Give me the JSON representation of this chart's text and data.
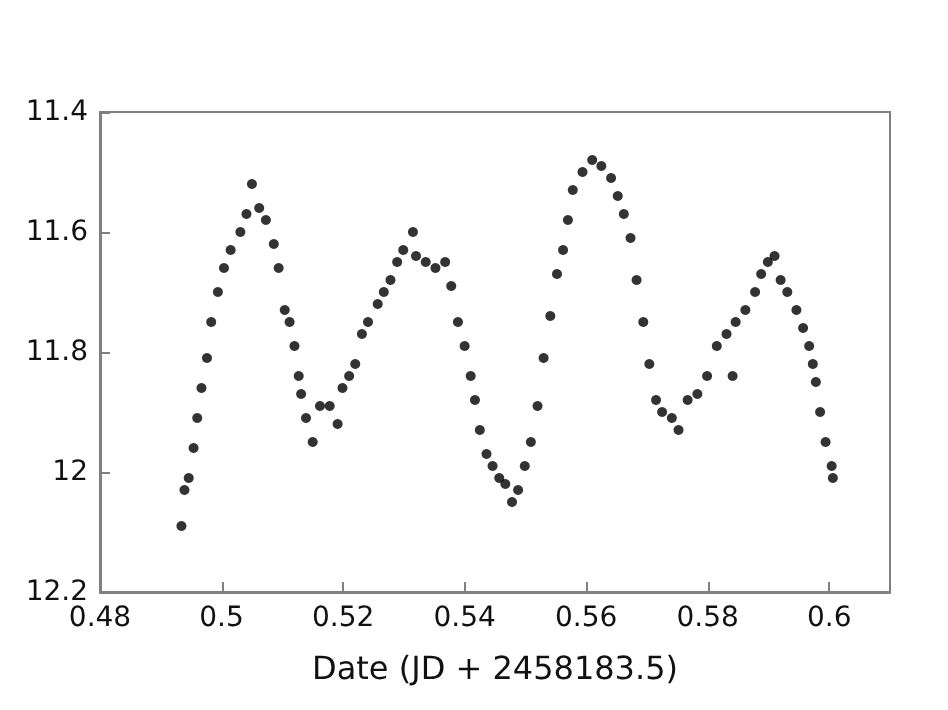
{
  "chart_data": {
    "type": "scatter",
    "xlabel": "Date (JD + 2458183.5)",
    "xlim": [
      0.48,
      0.61
    ],
    "xticks": [
      0.48,
      0.5,
      0.52,
      0.54,
      0.56,
      0.58,
      0.6
    ],
    "ylim": [
      12.2,
      11.4
    ],
    "yticks": [
      11.4,
      11.6,
      11.8,
      12,
      12.2
    ],
    "grid": false,
    "marker": "circle",
    "series": [
      {
        "color": "#000000",
        "x": [
          0.4934,
          0.4939,
          0.4946,
          0.4954,
          0.496,
          0.4967,
          0.4976,
          0.4983,
          0.4994,
          0.5004,
          0.5015,
          0.5031,
          0.5041,
          0.505,
          0.5062,
          0.5073,
          0.5086,
          0.5094,
          0.5104,
          0.5112,
          0.512,
          0.5127,
          0.5131,
          0.5139,
          0.515,
          0.5162,
          0.5178,
          0.5191,
          0.5199,
          0.521,
          0.522,
          0.5231,
          0.5241,
          0.5257,
          0.5267,
          0.5278,
          0.5289,
          0.5299,
          0.5315,
          0.532,
          0.5336,
          0.5352,
          0.5368,
          0.5378,
          0.5389,
          0.54,
          0.541,
          0.5417,
          0.5425,
          0.5436,
          0.5446,
          0.5457,
          0.5467,
          0.5478,
          0.5488,
          0.5499,
          0.5509,
          0.552,
          0.553,
          0.5541,
          0.5552,
          0.5562,
          0.557,
          0.5578,
          0.5594,
          0.561,
          0.5625,
          0.5641,
          0.5652,
          0.5662,
          0.5673,
          0.5683,
          0.5694,
          0.5704,
          0.5715,
          0.5725,
          0.5741,
          0.5752,
          0.5767,
          0.5783,
          0.5799,
          0.5815,
          0.5831,
          0.5841,
          0.5846,
          0.5862,
          0.5878,
          0.5888,
          0.5899,
          0.591,
          0.592,
          0.5931,
          0.5946,
          0.5957,
          0.5967,
          0.5973,
          0.5978,
          0.5985,
          0.5994,
          0.6004,
          0.6006
        ],
        "values": [
          12.09,
          12.03,
          12.01,
          11.96,
          11.91,
          11.86,
          11.81,
          11.75,
          11.7,
          11.66,
          11.63,
          11.6,
          11.57,
          11.52,
          11.56,
          11.58,
          11.62,
          11.66,
          11.73,
          11.75,
          11.79,
          11.84,
          11.87,
          11.91,
          11.95,
          11.89,
          11.89,
          11.92,
          11.86,
          11.84,
          11.82,
          11.77,
          11.75,
          11.72,
          11.7,
          11.68,
          11.65,
          11.63,
          11.6,
          11.64,
          11.65,
          11.66,
          11.65,
          11.69,
          11.75,
          11.79,
          11.84,
          11.88,
          11.93,
          11.97,
          11.99,
          12.01,
          12.02,
          12.05,
          12.03,
          11.99,
          11.95,
          11.89,
          11.81,
          11.74,
          11.67,
          11.63,
          11.58,
          11.53,
          11.5,
          11.48,
          11.49,
          11.51,
          11.54,
          11.57,
          11.61,
          11.68,
          11.75,
          11.82,
          11.88,
          11.9,
          11.91,
          11.93,
          11.88,
          11.87,
          11.84,
          11.79,
          11.77,
          11.84,
          11.75,
          11.73,
          11.7,
          11.67,
          11.65,
          11.64,
          11.68,
          11.7,
          11.73,
          11.76,
          11.79,
          11.82,
          11.85,
          11.9,
          11.95,
          11.99,
          12.01
        ]
      }
    ]
  }
}
